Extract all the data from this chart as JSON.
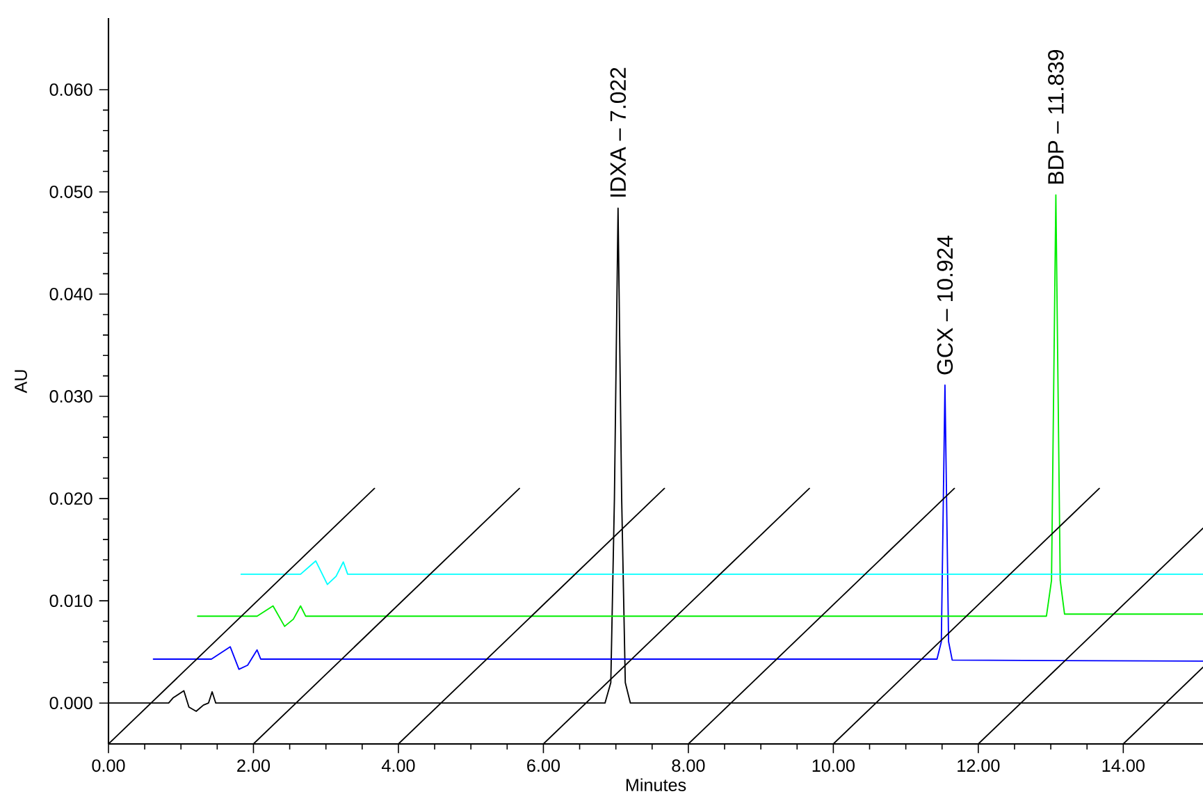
{
  "chart_data": {
    "type": "line",
    "xlabel": "Minutes",
    "ylabel": "AU",
    "xlim": [
      0,
      15.1
    ],
    "ylim": [
      -0.004,
      0.067
    ],
    "xticks": [
      {
        "value": 0,
        "label": "0.00"
      },
      {
        "value": 2,
        "label": "2.00"
      },
      {
        "value": 4,
        "label": "4.00"
      },
      {
        "value": 6,
        "label": "6.00"
      },
      {
        "value": 8,
        "label": "8.00"
      },
      {
        "value": 10,
        "label": "10.00"
      },
      {
        "value": 12,
        "label": "12.00"
      },
      {
        "value": 14,
        "label": "14.00"
      }
    ],
    "yticks": [
      {
        "value": 0,
        "label": "0.000"
      },
      {
        "value": 0.01,
        "label": "0.010"
      },
      {
        "value": 0.02,
        "label": "0.020"
      },
      {
        "value": 0.03,
        "label": "0.030"
      },
      {
        "value": 0.04,
        "label": "0.040"
      },
      {
        "value": 0.05,
        "label": "0.050"
      },
      {
        "value": 0.06,
        "label": "0.060"
      }
    ],
    "series": [
      {
        "color": "#000000",
        "x": [
          0,
          0.83,
          0.89,
          1.04,
          1.11,
          1.21,
          1.31,
          1.38,
          1.43,
          1.48,
          6.85,
          6.93,
          6.98,
          7.03,
          7.08,
          7.13,
          7.2,
          15.1
        ],
        "values": [
          0,
          0,
          0.0005,
          0.0012,
          -0.0004,
          -0.0008,
          -0.0002,
          0,
          0.0011,
          0,
          0,
          0.002,
          0.02,
          0.0484,
          0.02,
          0.002,
          0,
          0
        ]
      },
      {
        "color": "#0000ff",
        "x": [
          0.62,
          1.42,
          1.68,
          1.8,
          1.92,
          2.05,
          2.1,
          11.43,
          11.49,
          11.54,
          11.59,
          11.64,
          15.1
        ],
        "values": [
          0.0043,
          0.0043,
          0.0055,
          0.0033,
          0.0037,
          0.0052,
          0.0043,
          0.0043,
          0.006,
          0.0311,
          0.006,
          0.0042,
          0.0041
        ]
      },
      {
        "color": "#00ee00",
        "x": [
          1.23,
          2.05,
          2.27,
          2.43,
          2.55,
          2.65,
          2.72,
          12.94,
          13.01,
          13.07,
          13.13,
          13.19,
          15.1
        ],
        "values": [
          0.0085,
          0.0085,
          0.0095,
          0.0075,
          0.0082,
          0.0095,
          0.0085,
          0.0085,
          0.012,
          0.0497,
          0.012,
          0.0087,
          0.0087
        ]
      },
      {
        "color": "#00ffff",
        "x": [
          1.83,
          2.65,
          2.86,
          3.02,
          3.14,
          3.24,
          3.3,
          15.1
        ],
        "values": [
          0.0126,
          0.0126,
          0.0139,
          0.0116,
          0.0124,
          0.0138,
          0.0126,
          0.0126
        ]
      },
      {
        "color": "#000000",
        "x": [
          0,
          3.67
        ],
        "values": [
          -0.004,
          0.021
        ]
      },
      {
        "color": "#000000",
        "x": [
          2,
          5.67
        ],
        "values": [
          -0.004,
          0.021
        ]
      },
      {
        "color": "#000000",
        "x": [
          4,
          7.67
        ],
        "values": [
          -0.004,
          0.021
        ]
      },
      {
        "color": "#000000",
        "x": [
          6,
          9.67
        ],
        "values": [
          -0.004,
          0.021
        ]
      },
      {
        "color": "#000000",
        "x": [
          8,
          11.67
        ],
        "values": [
          -0.004,
          0.021
        ]
      },
      {
        "color": "#000000",
        "x": [
          10,
          13.67
        ],
        "values": [
          -0.004,
          0.021
        ]
      },
      {
        "color": "#000000",
        "x": [
          12,
          15.1
        ],
        "values": [
          -0.004,
          0.0171
        ]
      },
      {
        "color": "#000000",
        "x": [
          14,
          15.1
        ],
        "values": [
          -0.004,
          0.0035
        ]
      }
    ],
    "annotations": [
      {
        "text": "IDXA – 7.022",
        "x": 7.03,
        "y": 0.0484
      },
      {
        "text": "GCX – 10.924",
        "x": 11.54,
        "y": 0.0311
      },
      {
        "text": "BDP – 11.839",
        "x": 13.07,
        "y": 0.0497
      }
    ]
  }
}
